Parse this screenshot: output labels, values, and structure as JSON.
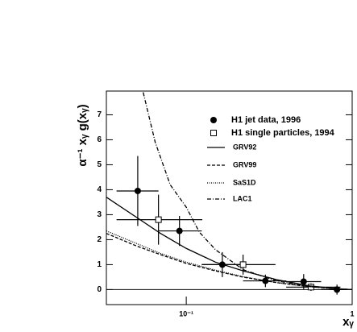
{
  "chart_data": {
    "type": "scatter",
    "y_label": "α⁻¹ xᵧ g(xᵧ)",
    "x_label": "xᵧ",
    "log_x": true,
    "xlim": [
      0.033,
      1.0
    ],
    "ylim": [
      -0.6,
      7.95
    ],
    "xticks": [
      {
        "value": 0.1,
        "label": "10⁻¹"
      },
      1
    ],
    "yticks": [
      0,
      1,
      2,
      3,
      4,
      5,
      6,
      7
    ],
    "legend": "upper right",
    "series": [
      {
        "name": "H1 jet data, 1996",
        "kind": "points",
        "marker": "filled-circle",
        "color": "#000000",
        "x": [
          0.051,
          0.091,
          0.165,
          0.3,
          0.51,
          0.81
        ],
        "values": [
          3.95,
          2.35,
          1.0,
          0.35,
          0.32,
          0.0
        ],
        "yerr": [
          1.4,
          0.6,
          0.5,
          0.25,
          0.3,
          0.2
        ],
        "xlow": [
          0.038,
          0.068,
          0.124,
          0.22,
          0.4,
          0.65
        ],
        "xhigh": [
          0.068,
          0.124,
          0.22,
          0.4,
          0.65,
          1.0
        ]
      },
      {
        "name": "H1 single particles, 1994",
        "kind": "points",
        "marker": "open-square",
        "color": "#000000",
        "x": [
          0.068,
          0.22,
          0.565
        ],
        "values": [
          2.8,
          1.0,
          0.1
        ],
        "yerr": [
          1.0,
          0.4,
          0.15
        ],
        "xlow": [
          0.038,
          0.124,
          0.4
        ],
        "xhigh": [
          0.125,
          0.345,
          0.85
        ]
      },
      {
        "name": "GRV92",
        "kind": "line",
        "style": "solid",
        "color": "#000000",
        "x": [
          0.033,
          0.05,
          0.07,
          0.1,
          0.15,
          0.22,
          0.35,
          0.55,
          0.85,
          1.0
        ],
        "values": [
          3.7,
          2.9,
          2.25,
          1.65,
          1.1,
          0.75,
          0.4,
          0.15,
          0.03,
          0.0
        ]
      },
      {
        "name": "GRV99",
        "kind": "line",
        "style": "dashed",
        "color": "#000000",
        "x": [
          0.033,
          0.05,
          0.07,
          0.1,
          0.15,
          0.22,
          0.35,
          0.55,
          0.85,
          1.0
        ],
        "values": [
          2.25,
          1.75,
          1.4,
          1.05,
          0.75,
          0.5,
          0.28,
          0.12,
          0.03,
          0.0
        ]
      },
      {
        "name": "SaS1D",
        "kind": "line",
        "style": "dotted",
        "color": "#000000",
        "x": [
          0.033,
          0.05,
          0.07,
          0.1,
          0.15,
          0.22,
          0.35,
          0.55,
          0.85,
          1.0
        ],
        "values": [
          2.35,
          1.85,
          1.45,
          1.1,
          0.78,
          0.52,
          0.28,
          0.12,
          0.03,
          0.0
        ]
      },
      {
        "name": "LAC1",
        "kind": "line",
        "style": "dashdot",
        "color": "#000000",
        "x": [
          0.055,
          0.065,
          0.08,
          0.1,
          0.12,
          0.15,
          0.22,
          0.35,
          0.55,
          0.85,
          1.0
        ],
        "values": [
          7.9,
          5.9,
          4.2,
          3.3,
          2.3,
          1.6,
          0.8,
          0.35,
          0.12,
          0.02,
          0.0
        ]
      }
    ]
  }
}
